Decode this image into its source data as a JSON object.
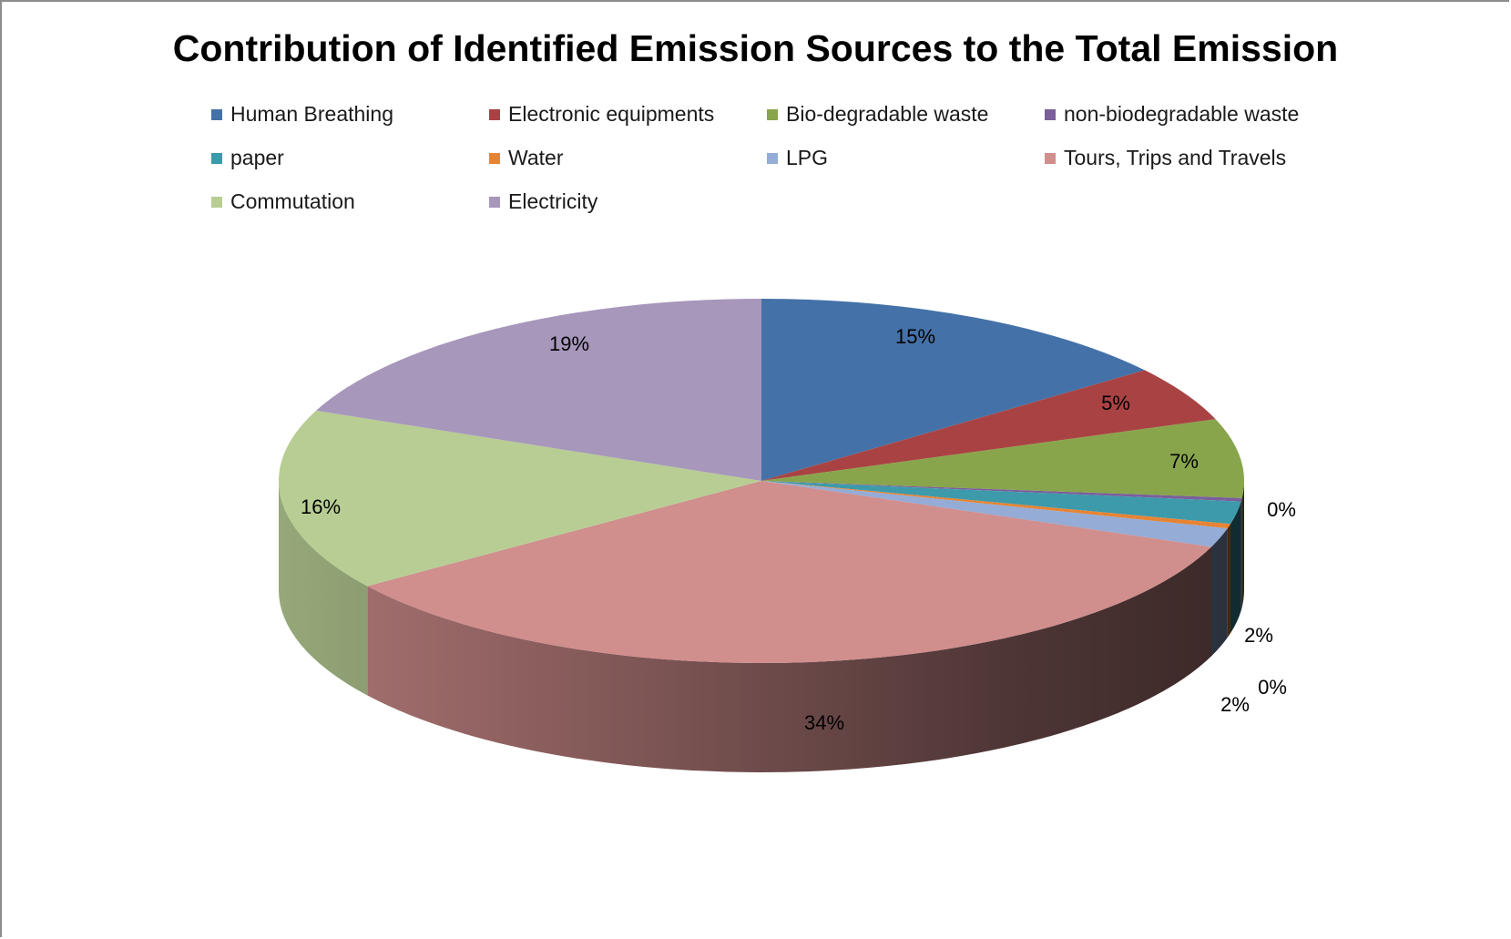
{
  "chart_data": {
    "type": "pie",
    "variant": "3d",
    "title": "Contribution of Identified Emission Sources to the Total Emission",
    "legend_position": "top",
    "categories": [
      "Human Breathing",
      "Electronic equipments",
      "Bio-degradable waste",
      "non-biodegradable waste",
      "paper",
      "Water",
      "LPG",
      "Tours, Trips and Travels",
      "Commutation",
      "Electricity"
    ],
    "values": [
      14.6,
      4.9,
      7.0,
      0.3,
      2.0,
      0.4,
      1.7,
      34.3,
      16.1,
      18.7
    ],
    "labels": [
      "15%",
      "5%",
      "7%",
      "0%",
      "2%",
      "0%",
      "2%",
      "34%",
      "16%",
      "19%"
    ],
    "colors": [
      "#4472a8",
      "#a94343",
      "#88a54c",
      "#7a5f9a",
      "#3d9aaa",
      "#e68434",
      "#94acd6",
      "#d08e8d",
      "#b7cd94",
      "#a797bb"
    ]
  }
}
